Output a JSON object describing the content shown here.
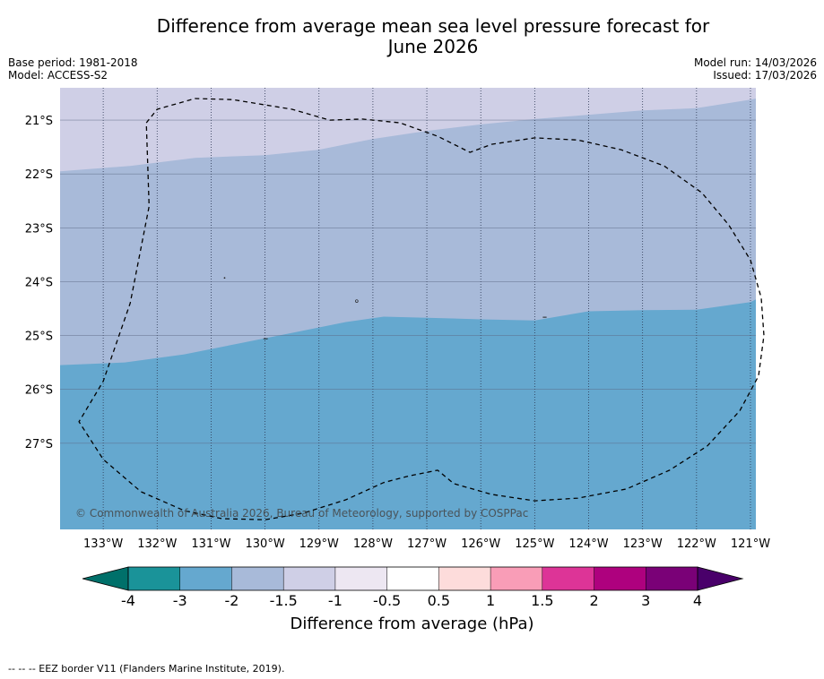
{
  "title": {
    "line1": "Difference from average mean sea level pressure forecast for",
    "line2": "June 2026"
  },
  "meta": {
    "base_period": "Base period: 1981-2018",
    "model": "Model: ACCESS-S2",
    "model_run": "Model run: 14/03/2026",
    "issued": "Issued: 17/03/2026"
  },
  "map": {
    "copyright": "© Commonwealth of Australia 2026, Bureau of Meteorology, supported by COSPPac",
    "lon_range": [
      -133.8,
      -120.9
    ],
    "lat_range": [
      -20.4,
      -28.6
    ],
    "lon_ticks": [
      {
        "value": -133,
        "label": "133°W"
      },
      {
        "value": -132,
        "label": "132°W"
      },
      {
        "value": -131,
        "label": "131°W"
      },
      {
        "value": -130,
        "label": "130°W"
      },
      {
        "value": -129,
        "label": "129°W"
      },
      {
        "value": -128,
        "label": "128°W"
      },
      {
        "value": -127,
        "label": "127°W"
      },
      {
        "value": -126,
        "label": "126°W"
      },
      {
        "value": -125,
        "label": "125°W"
      },
      {
        "value": -124,
        "label": "124°W"
      },
      {
        "value": -123,
        "label": "123°W"
      },
      {
        "value": -122,
        "label": "122°W"
      },
      {
        "value": -121,
        "label": "121°W"
      }
    ],
    "lat_ticks": [
      {
        "value": -21,
        "label": "21°S"
      },
      {
        "value": -22,
        "label": "22°S"
      },
      {
        "value": -23,
        "label": "23°S"
      },
      {
        "value": -24,
        "label": "24°S"
      },
      {
        "value": -25,
        "label": "25°S"
      },
      {
        "value": -26,
        "label": "26°S"
      },
      {
        "value": -27,
        "label": "27°S"
      }
    ],
    "regions": [
      {
        "name": "-2 to -1.5",
        "color": "#cfcfe6"
      },
      {
        "name": "-3 to -2",
        "color": "#a8bad9"
      },
      {
        "name": "below -3",
        "color": "#65a8cf"
      }
    ],
    "boundary_upper": [
      [
        -133.8,
        -21.95
      ],
      [
        -132.5,
        -21.85
      ],
      [
        -131.3,
        -21.7
      ],
      [
        -130.0,
        -21.65
      ],
      [
        -129.0,
        -21.55
      ],
      [
        -128.0,
        -21.35
      ],
      [
        -127.0,
        -21.2
      ],
      [
        -126.0,
        -21.08
      ],
      [
        -125.0,
        -20.98
      ],
      [
        -124.0,
        -20.9
      ],
      [
        -123.0,
        -20.82
      ],
      [
        -122.0,
        -20.78
      ],
      [
        -121.0,
        -20.62
      ],
      [
        -120.9,
        -20.6
      ]
    ],
    "boundary_lower": [
      [
        -133.8,
        -25.55
      ],
      [
        -132.6,
        -25.5
      ],
      [
        -131.5,
        -25.35
      ],
      [
        -130.5,
        -25.15
      ],
      [
        -129.5,
        -24.95
      ],
      [
        -128.5,
        -24.75
      ],
      [
        -127.8,
        -24.65
      ],
      [
        -127.0,
        -24.67
      ],
      [
        -126.0,
        -24.7
      ],
      [
        -125.0,
        -24.72
      ],
      [
        -124.0,
        -24.55
      ],
      [
        -123.0,
        -24.53
      ],
      [
        -122.0,
        -24.52
      ],
      [
        -121.0,
        -24.38
      ],
      [
        -120.9,
        -24.33
      ]
    ],
    "eez": [
      [
        -132.2,
        -21.05
      ],
      [
        -132.0,
        -20.8
      ],
      [
        -131.3,
        -20.6
      ],
      [
        -130.6,
        -20.62
      ],
      [
        -129.5,
        -20.8
      ],
      [
        -128.8,
        -21.0
      ],
      [
        -128.2,
        -20.98
      ],
      [
        -127.5,
        -21.05
      ],
      [
        -126.8,
        -21.3
      ],
      [
        -126.2,
        -21.6
      ],
      [
        -125.8,
        -21.45
      ],
      [
        -125.0,
        -21.33
      ],
      [
        -124.2,
        -21.37
      ],
      [
        -123.4,
        -21.55
      ],
      [
        -122.6,
        -21.85
      ],
      [
        -121.9,
        -22.35
      ],
      [
        -121.4,
        -22.95
      ],
      [
        -121.0,
        -23.6
      ],
      [
        -120.8,
        -24.3
      ],
      [
        -120.75,
        -25.0
      ],
      [
        -120.85,
        -25.75
      ],
      [
        -121.2,
        -26.4
      ],
      [
        -121.8,
        -27.05
      ],
      [
        -122.5,
        -27.5
      ],
      [
        -123.3,
        -27.85
      ],
      [
        -124.2,
        -28.02
      ],
      [
        -125.0,
        -28.07
      ],
      [
        -125.8,
        -27.95
      ],
      [
        -126.5,
        -27.75
      ],
      [
        -126.8,
        -27.5
      ],
      [
        -127.3,
        -27.6
      ],
      [
        -127.8,
        -27.73
      ],
      [
        -128.5,
        -28.05
      ],
      [
        -129.3,
        -28.3
      ],
      [
        -130.0,
        -28.42
      ],
      [
        -130.8,
        -28.4
      ],
      [
        -131.5,
        -28.25
      ],
      [
        -132.3,
        -27.9
      ],
      [
        -133.0,
        -27.3
      ],
      [
        -133.45,
        -26.6
      ],
      [
        -133.0,
        -25.85
      ],
      [
        -132.5,
        -24.4
      ],
      [
        -132.15,
        -22.6
      ],
      [
        -132.2,
        -21.05
      ]
    ]
  },
  "colorbar": {
    "label": "Difference from average (hPa)",
    "ticks": [
      "-4",
      "-3",
      "-2",
      "-1.5",
      "-1",
      "-0.5",
      "0.5",
      "1",
      "1.5",
      "2",
      "3",
      "4"
    ],
    "colors": [
      "#1a9399",
      "#65a8cf",
      "#a8bad9",
      "#cfcfe6",
      "#ede7f2",
      "#ffffff",
      "#fddcdb",
      "#f99db7",
      "#dd3497",
      "#ae017e",
      "#7a0177"
    ],
    "low_color": "#00706a",
    "high_color": "#49006a"
  },
  "footnote": "-- -- -- EEZ border V11 (Flanders Marine Institute, 2019)."
}
